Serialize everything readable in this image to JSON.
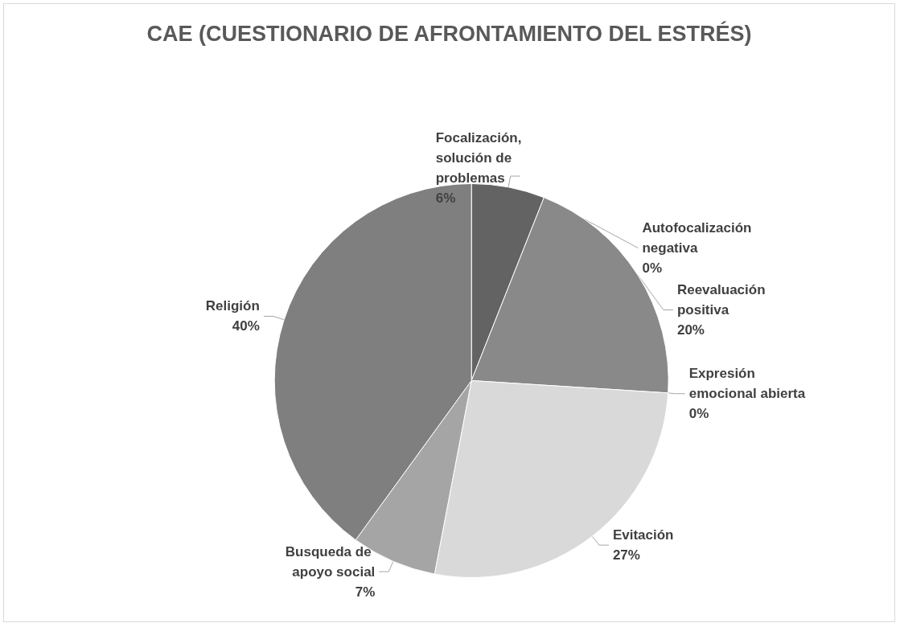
{
  "chart_data": {
    "type": "pie",
    "title": "CAE (CUESTIONARIO DE AFRONTAMIENTO DEL ESTRÉS)",
    "categories": [
      "Focalización, solución de problemas",
      "Autofocalización negativa",
      "Reevaluación positiva",
      "Expresión emocional abierta",
      "Evitación",
      "Busqueda de apoyo social",
      "Religión"
    ],
    "values": [
      6,
      0,
      20,
      0,
      27,
      7,
      40
    ],
    "colors": [
      "#636363",
      "#737373",
      "#898989",
      "#bfbfbf",
      "#d9d9d9",
      "#a5a5a5",
      "#7f7f7f"
    ],
    "value_labels": [
      "6%",
      "0%",
      "20%",
      "0%",
      "27%",
      "7%",
      "40%"
    ],
    "legend": false
  }
}
